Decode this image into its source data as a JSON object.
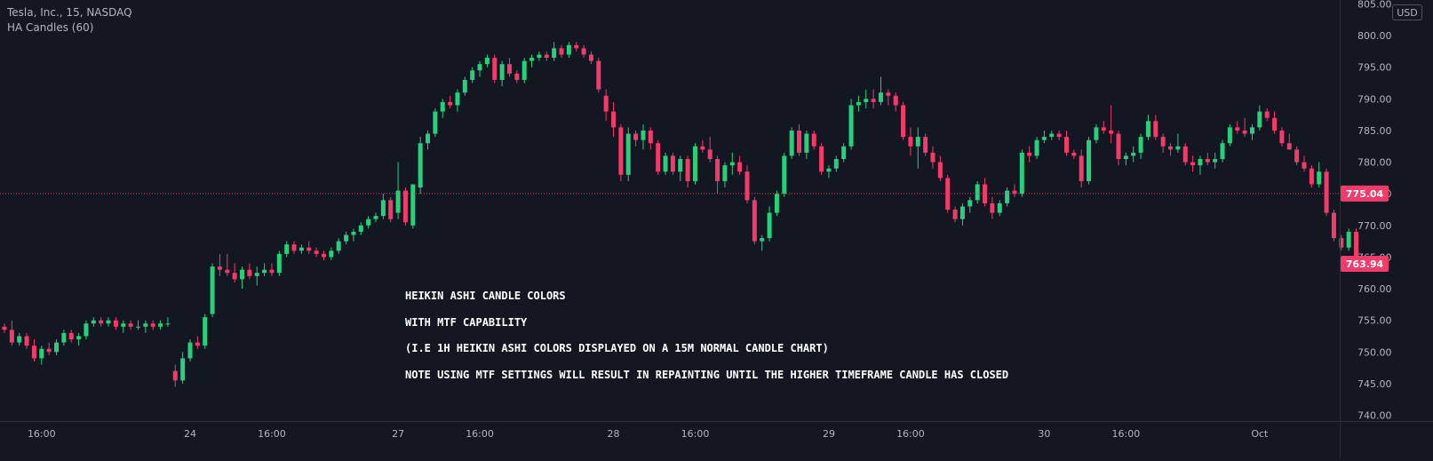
{
  "header": {
    "symbol": "Tesla, Inc., 15, NASDAQ",
    "indicator": "HA Candles (60)",
    "currency": "USD"
  },
  "annotation": {
    "lines": [
      "HEIKIN ASHI CANDLE COLORS",
      "WITH MTF CAPABILITY",
      "(I.E 1H HEIKIN ASHI COLORS DISPLAYED ON A 15M NORMAL CANDLE CHART)",
      "NOTE USING MTF SETTINGS WILL RESULT IN REPAINTING UNTIL THE HIGHER TIMEFRAME CANDLE HAS CLOSED"
    ]
  },
  "colors": {
    "background": "#131722",
    "up": "#26d07c",
    "down": "#f23b6a",
    "axis_text": "#b2b5be",
    "border": "#2a2e39",
    "price_line": "#f23b6a"
  },
  "chart_data": {
    "type": "candlestick",
    "title": "Tesla, Inc., 15, NASDAQ",
    "ylim": [
      740,
      805
    ],
    "y_ticks": [
      "805.00",
      "800.00",
      "795.00",
      "790.00",
      "785.00",
      "780.00",
      "775.00",
      "770.00",
      "765.00",
      "760.00",
      "755.00",
      "750.00",
      "745.00",
      "740.00"
    ],
    "x_ticks": [
      {
        "label": "16:00",
        "i": 5
      },
      {
        "label": "24",
        "i": 25
      },
      {
        "label": "16:00",
        "i": 36
      },
      {
        "label": "27",
        "i": 53
      },
      {
        "label": "16:00",
        "i": 64
      },
      {
        "label": "28",
        "i": 82
      },
      {
        "label": "16:00",
        "i": 93
      },
      {
        "label": "29",
        "i": 111
      },
      {
        "label": "16:00",
        "i": 122
      },
      {
        "label": "30",
        "i": 140
      },
      {
        "label": "16:00",
        "i": 151
      },
      {
        "label": "Oct",
        "i": 169
      }
    ],
    "price_labels": [
      {
        "value": 775.04,
        "text": "775.04"
      },
      {
        "value": 763.94,
        "text": "763.94"
      }
    ],
    "candles": [
      [
        754.0,
        754.5,
        753.0,
        753.5
      ],
      [
        753.5,
        755.0,
        751.0,
        751.5
      ],
      [
        751.5,
        753.0,
        751.0,
        752.5
      ],
      [
        752.5,
        753.0,
        750.5,
        751.0
      ],
      [
        751.0,
        752.0,
        748.5,
        749.0
      ],
      [
        749.0,
        751.0,
        748.0,
        750.5
      ],
      [
        750.5,
        751.5,
        749.5,
        750.0
      ],
      [
        750.0,
        752.0,
        749.5,
        751.5
      ],
      [
        751.5,
        753.5,
        751.0,
        753.0
      ],
      [
        753.0,
        753.5,
        751.5,
        752.0
      ],
      [
        752.0,
        753.0,
        751.0,
        752.5
      ],
      [
        752.5,
        755.0,
        752.0,
        754.5
      ],
      [
        754.5,
        755.5,
        754.0,
        755.0
      ],
      [
        755.0,
        755.5,
        754.0,
        754.5
      ],
      [
        754.5,
        755.5,
        754.0,
        755.0
      ],
      [
        755.0,
        755.5,
        753.5,
        754.0
      ],
      [
        754.0,
        755.0,
        753.0,
        754.5
      ],
      [
        754.5,
        755.0,
        753.5,
        754.0
      ],
      [
        754.0,
        755.0,
        753.5,
        754.0
      ],
      [
        754.0,
        755.0,
        753.0,
        754.5
      ],
      [
        754.5,
        755.0,
        753.5,
        754.0
      ],
      [
        754.0,
        755.0,
        753.5,
        754.5
      ],
      [
        754.5,
        755.5,
        754.0,
        754.5
      ],
      [
        747.0,
        748.0,
        744.5,
        745.5
      ],
      [
        745.5,
        750.0,
        745.0,
        749.0
      ],
      [
        749.0,
        752.0,
        748.5,
        751.5
      ],
      [
        751.5,
        752.5,
        750.5,
        751.0
      ],
      [
        751.0,
        756.0,
        750.5,
        755.5
      ],
      [
        756.0,
        764.0,
        755.5,
        763.5
      ],
      [
        763.5,
        765.5,
        762.0,
        763.0
      ],
      [
        763.0,
        765.5,
        762.0,
        762.5
      ],
      [
        762.5,
        764.0,
        761.0,
        761.5
      ],
      [
        761.5,
        763.5,
        760.0,
        763.0
      ],
      [
        763.0,
        764.0,
        761.5,
        762.0
      ],
      [
        762.0,
        763.5,
        760.5,
        762.5
      ],
      [
        762.5,
        764.0,
        762.0,
        763.0
      ],
      [
        763.0,
        764.0,
        762.0,
        762.5
      ],
      [
        762.5,
        766.0,
        762.0,
        765.5
      ],
      [
        765.5,
        767.5,
        765.0,
        767.0
      ],
      [
        767.0,
        767.5,
        765.5,
        766.0
      ],
      [
        766.0,
        767.0,
        765.5,
        766.5
      ],
      [
        766.5,
        767.5,
        765.5,
        766.0
      ],
      [
        766.0,
        766.5,
        765.0,
        765.5
      ],
      [
        765.5,
        766.0,
        764.5,
        765.0
      ],
      [
        765.0,
        766.5,
        764.5,
        766.0
      ],
      [
        766.0,
        768.0,
        765.5,
        767.5
      ],
      [
        767.5,
        769.0,
        767.0,
        768.5
      ],
      [
        768.5,
        769.5,
        767.5,
        769.0
      ],
      [
        769.0,
        770.5,
        768.5,
        770.0
      ],
      [
        770.0,
        771.5,
        769.5,
        771.0
      ],
      [
        771.0,
        772.0,
        770.5,
        771.5
      ],
      [
        771.5,
        775.0,
        771.0,
        774.0
      ],
      [
        774.0,
        774.5,
        770.5,
        771.0
      ],
      [
        772.0,
        780.0,
        771.0,
        775.5
      ],
      [
        775.5,
        776.0,
        770.0,
        770.5
      ],
      [
        770.0,
        776.0,
        769.5,
        776.5
      ],
      [
        776.0,
        784.0,
        775.0,
        783.0
      ],
      [
        783.0,
        785.0,
        782.0,
        784.5
      ],
      [
        784.5,
        788.5,
        784.0,
        788.0
      ],
      [
        788.0,
        790.0,
        787.0,
        789.5
      ],
      [
        789.5,
        790.5,
        788.5,
        789.0
      ],
      [
        789.0,
        791.5,
        788.0,
        791.0
      ],
      [
        791.0,
        793.5,
        790.5,
        793.0
      ],
      [
        793.0,
        795.0,
        792.5,
        794.5
      ],
      [
        794.5,
        796.0,
        793.5,
        795.5
      ],
      [
        795.5,
        797.0,
        795.0,
        796.5
      ],
      [
        796.5,
        797.0,
        792.5,
        793.0
      ],
      [
        793.0,
        796.0,
        792.0,
        795.5
      ],
      [
        795.5,
        796.5,
        793.5,
        794.0
      ],
      [
        794.0,
        794.5,
        792.5,
        793.0
      ],
      [
        793.0,
        796.5,
        792.5,
        796.0
      ],
      [
        796.0,
        797.0,
        795.0,
        796.5
      ],
      [
        796.5,
        797.5,
        796.0,
        797.0
      ],
      [
        797.0,
        797.5,
        796.0,
        796.5
      ],
      [
        796.5,
        799.0,
        796.0,
        798.0
      ],
      [
        798.0,
        798.5,
        796.5,
        797.0
      ],
      [
        797.0,
        799.0,
        796.5,
        798.5
      ],
      [
        798.5,
        799.0,
        797.5,
        798.0
      ],
      [
        798.0,
        798.5,
        796.5,
        797.0
      ],
      [
        797.0,
        797.5,
        795.5,
        796.0
      ],
      [
        796.0,
        796.5,
        791.0,
        791.5
      ],
      [
        790.5,
        791.5,
        786.5,
        788.0
      ],
      [
        788.0,
        789.5,
        784.0,
        785.5
      ],
      [
        785.5,
        786.0,
        777.0,
        778.0
      ],
      [
        778.0,
        785.5,
        777.0,
        784.5
      ],
      [
        784.5,
        785.0,
        782.5,
        783.5
      ],
      [
        783.5,
        786.0,
        782.0,
        785.0
      ],
      [
        785.0,
        785.5,
        782.0,
        783.0
      ],
      [
        783.0,
        783.5,
        778.0,
        778.5
      ],
      [
        778.5,
        781.5,
        778.0,
        781.0
      ],
      [
        781.0,
        781.5,
        778.0,
        778.5
      ],
      [
        778.5,
        781.0,
        777.0,
        780.5
      ],
      [
        780.5,
        781.0,
        776.0,
        777.0
      ],
      [
        777.0,
        783.0,
        776.5,
        782.5
      ],
      [
        782.5,
        783.5,
        781.5,
        782.0
      ],
      [
        782.0,
        784.0,
        780.0,
        780.5
      ],
      [
        780.5,
        781.0,
        775.0,
        777.0
      ],
      [
        777.0,
        780.0,
        776.0,
        779.5
      ],
      [
        779.5,
        781.5,
        778.0,
        780.0
      ],
      [
        780.0,
        781.0,
        778.0,
        778.5
      ],
      [
        778.5,
        779.5,
        773.5,
        774.0
      ],
      [
        774.0,
        774.5,
        767.0,
        767.5
      ],
      [
        767.5,
        768.5,
        766.0,
        768.0
      ],
      [
        768.0,
        773.0,
        767.5,
        772.0
      ],
      [
        772.0,
        775.5,
        771.5,
        775.0
      ],
      [
        775.0,
        781.5,
        774.5,
        781.0
      ],
      [
        781.0,
        785.5,
        780.5,
        785.0
      ],
      [
        785.0,
        786.0,
        781.0,
        781.5
      ],
      [
        781.5,
        785.0,
        780.5,
        784.5
      ],
      [
        784.5,
        785.0,
        782.0,
        782.5
      ],
      [
        782.5,
        783.0,
        778.0,
        778.5
      ],
      [
        778.5,
        779.5,
        777.5,
        779.0
      ],
      [
        779.0,
        781.0,
        778.5,
        780.5
      ],
      [
        780.5,
        783.0,
        780.0,
        782.5
      ],
      [
        782.5,
        790.0,
        782.0,
        789.0
      ],
      [
        789.0,
        790.5,
        788.0,
        789.5
      ],
      [
        789.5,
        791.5,
        788.5,
        790.0
      ],
      [
        790.0,
        791.5,
        788.5,
        789.5
      ],
      [
        789.5,
        793.5,
        789.0,
        791.0
      ],
      [
        791.0,
        791.5,
        789.0,
        790.5
      ],
      [
        790.5,
        791.0,
        788.0,
        789.0
      ],
      [
        789.0,
        789.5,
        783.5,
        784.0
      ],
      [
        784.0,
        785.5,
        781.0,
        782.5
      ],
      [
        782.5,
        785.5,
        779.0,
        784.0
      ],
      [
        784.0,
        784.5,
        781.0,
        781.5
      ],
      [
        781.5,
        782.5,
        779.0,
        780.0
      ],
      [
        780.0,
        781.0,
        777.0,
        777.5
      ],
      [
        777.5,
        778.0,
        772.0,
        772.5
      ],
      [
        772.5,
        773.0,
        770.5,
        771.0
      ],
      [
        771.0,
        773.5,
        770.0,
        773.0
      ],
      [
        773.0,
        774.5,
        772.0,
        774.0
      ],
      [
        774.0,
        777.0,
        773.5,
        776.5
      ],
      [
        776.5,
        777.5,
        773.0,
        773.5
      ],
      [
        773.5,
        774.5,
        771.0,
        772.0
      ],
      [
        772.0,
        774.0,
        771.5,
        773.5
      ],
      [
        773.5,
        776.0,
        773.0,
        775.5
      ],
      [
        775.5,
        776.5,
        774.5,
        775.0
      ],
      [
        775.0,
        782.0,
        774.5,
        781.5
      ],
      [
        781.5,
        782.5,
        780.0,
        781.0
      ],
      [
        781.0,
        784.0,
        780.5,
        783.5
      ],
      [
        783.5,
        785.0,
        783.0,
        784.0
      ],
      [
        784.0,
        785.0,
        783.5,
        784.5
      ],
      [
        784.5,
        785.0,
        783.5,
        784.0
      ],
      [
        784.0,
        785.0,
        781.0,
        781.5
      ],
      [
        781.5,
        782.0,
        780.5,
        781.0
      ],
      [
        781.0,
        782.0,
        776.0,
        777.0
      ],
      [
        777.0,
        784.0,
        776.5,
        783.5
      ],
      [
        783.5,
        786.0,
        783.0,
        785.5
      ],
      [
        785.5,
        786.5,
        784.5,
        785.0
      ],
      [
        785.0,
        789.0,
        783.0,
        784.5
      ],
      [
        784.5,
        785.0,
        779.5,
        780.5
      ],
      [
        780.5,
        781.5,
        779.5,
        781.0
      ],
      [
        781.0,
        782.5,
        780.0,
        781.5
      ],
      [
        781.5,
        784.5,
        780.5,
        784.0
      ],
      [
        784.0,
        787.5,
        783.5,
        786.5
      ],
      [
        786.5,
        787.5,
        783.5,
        784.0
      ],
      [
        784.0,
        784.5,
        781.5,
        782.5
      ],
      [
        782.5,
        783.0,
        781.0,
        782.0
      ],
      [
        782.0,
        784.5,
        781.5,
        782.5
      ],
      [
        782.5,
        783.0,
        779.5,
        780.0
      ],
      [
        780.0,
        781.0,
        778.5,
        779.5
      ],
      [
        779.5,
        781.0,
        778.0,
        780.5
      ],
      [
        780.5,
        781.5,
        779.5,
        780.0
      ],
      [
        780.0,
        781.5,
        779.0,
        780.5
      ],
      [
        780.5,
        783.5,
        780.0,
        783.0
      ],
      [
        783.0,
        786.0,
        782.5,
        785.5
      ],
      [
        785.5,
        786.5,
        784.5,
        785.0
      ],
      [
        785.0,
        787.0,
        784.0,
        784.5
      ],
      [
        784.5,
        786.0,
        783.5,
        785.5
      ],
      [
        785.5,
        789.0,
        785.0,
        788.0
      ],
      [
        788.0,
        788.5,
        786.5,
        787.0
      ],
      [
        787.0,
        788.0,
        784.5,
        785.0
      ],
      [
        785.0,
        785.5,
        782.5,
        783.0
      ],
      [
        783.0,
        784.5,
        782.0,
        782.0
      ],
      [
        782.0,
        782.5,
        779.5,
        780.0
      ],
      [
        780.0,
        781.0,
        778.5,
        779.0
      ],
      [
        779.0,
        779.5,
        776.0,
        776.5
      ],
      [
        776.5,
        780.0,
        776.0,
        778.5
      ],
      [
        778.5,
        779.0,
        771.5,
        772.0
      ],
      [
        772.0,
        772.5,
        767.5,
        768.0
      ],
      [
        768.0,
        768.5,
        766.0,
        766.5
      ],
      [
        766.5,
        769.5,
        766.0,
        769.0
      ],
      [
        769.0,
        769.5,
        764.0,
        764.5
      ],
      [
        764.5,
        765.0,
        763.5,
        764.0
      ]
    ]
  }
}
